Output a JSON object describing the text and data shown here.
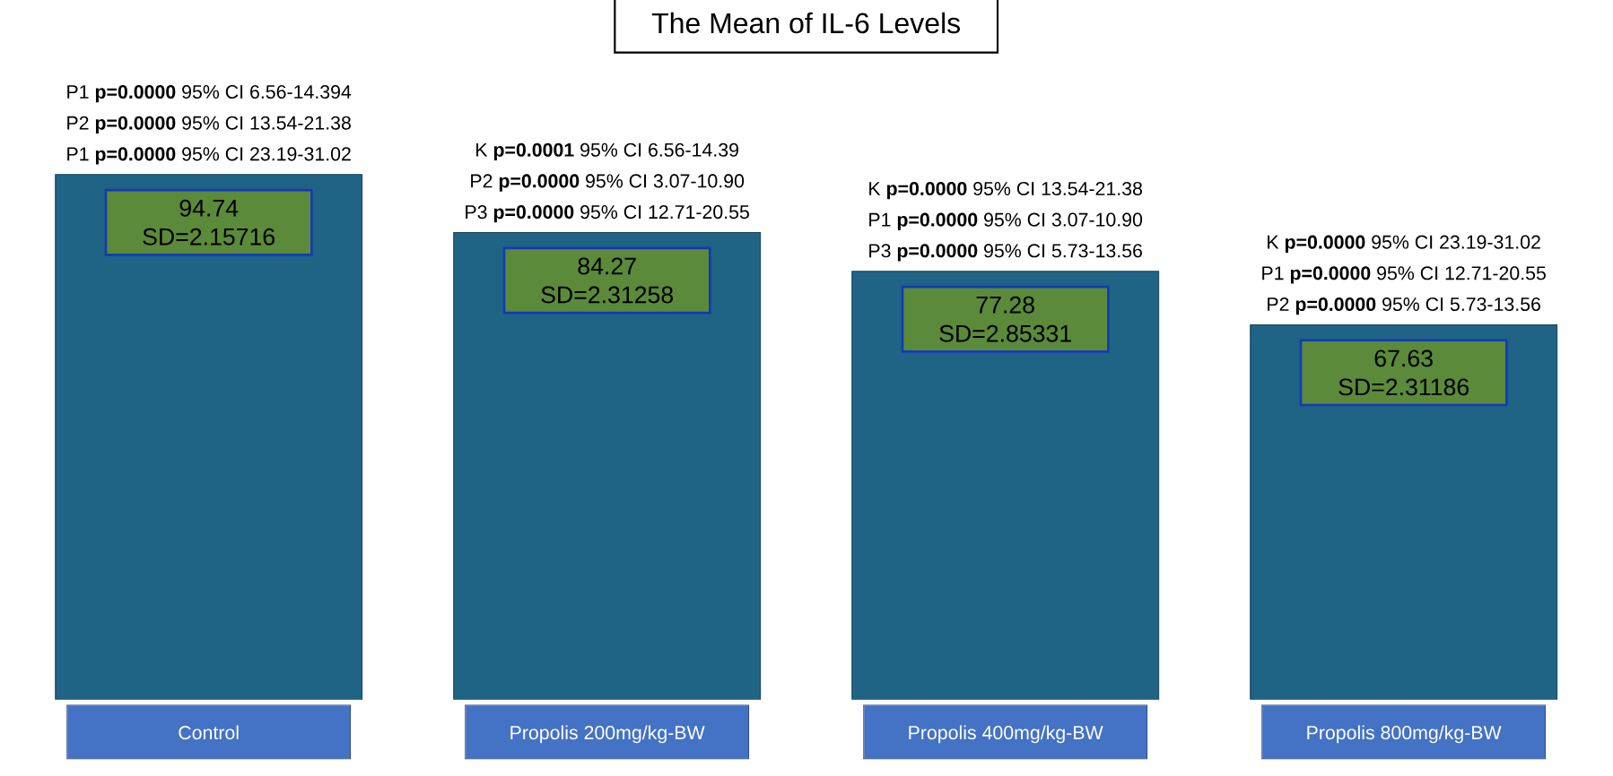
{
  "chart_data": {
    "type": "bar",
    "title": "The Mean of IL-6 Levels",
    "categories": [
      "Control",
      "Propolis 200mg/kg-BW",
      "Propolis 400mg/kg-BW",
      "Propolis 800mg/kg-BW"
    ],
    "values": [
      94.74,
      84.27,
      77.28,
      67.63
    ],
    "value_labels": [
      "94.74 SD=2.15716",
      "84.27 SD=2.31258",
      "77.28 SD=2.85331",
      "67.63 SD=2.31186"
    ],
    "color": "#1f6385",
    "annotations": [
      "P1 **p=0.0000** 95% CI 6.56-14.394",
      "P2 **p=0.0000** 95% CI 13.54-21.38",
      "P1 **p=0.0000** 95% CI 23.19-31.02",
      "K **p=0.0001** 95% CI 6.56-14.39",
      "P2 **p=0.0000** 95% CI 3.07-10.90",
      "P3 **p=0.0000** 95% CI 12.71-20.55",
      "K **p=0.0000** 95% CI 13.54-21.38",
      "P1 **p=0.0000** 95% CI 3.07-10.90",
      "P3 **p=0.0000** 95% CI 5.73-13.56",
      "K **p=0.0000** 95% CI 23.19-31.02",
      "P1 **p=0.0000** 95% CI 12.71-20.55",
      "P2 **p=0.0000** 95% CI 5.73-13.56"
    ]
  }
}
